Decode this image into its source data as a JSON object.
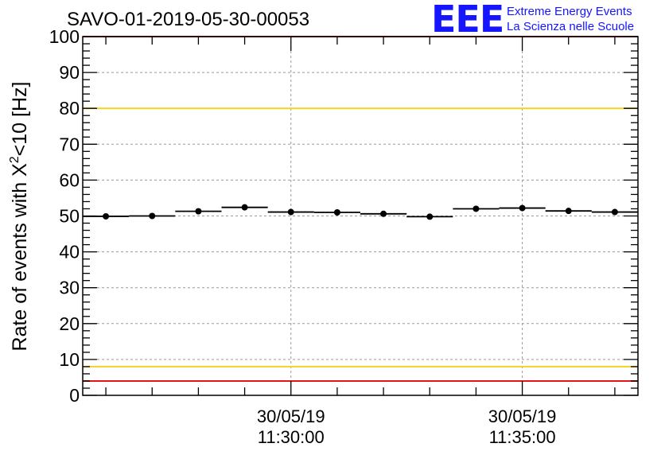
{
  "chart_data": {
    "type": "scatter",
    "title": "SAVO-01-2019-05-30-00053",
    "ylabel_parts": [
      "Rate of events with X",
      "2",
      "<10 [Hz]"
    ],
    "ylim": [
      0,
      100
    ],
    "yticks": [
      0,
      10,
      20,
      30,
      40,
      50,
      60,
      70,
      80,
      90,
      100
    ],
    "xlim_minutes": [
      0,
      12
    ],
    "x_major_ticks": [
      {
        "minute": 4.5,
        "date": "30/05/19",
        "time": "11:30:00"
      },
      {
        "minute": 9.5,
        "date": "30/05/19",
        "time": "11:35:00"
      }
    ],
    "x_minor_minutes": [
      0.5,
      1.5,
      2.5,
      3.5,
      4.5,
      5.5,
      6.5,
      7.5,
      8.5,
      9.5,
      10.5,
      11.5
    ],
    "bin_width_minutes": 1,
    "points": [
      {
        "x": 0.5,
        "y": 49.9
      },
      {
        "x": 1.5,
        "y": 50.0
      },
      {
        "x": 2.5,
        "y": 51.3
      },
      {
        "x": 3.5,
        "y": 52.4
      },
      {
        "x": 4.5,
        "y": 51.1
      },
      {
        "x": 5.5,
        "y": 51.0
      },
      {
        "x": 6.5,
        "y": 50.6
      },
      {
        "x": 7.5,
        "y": 49.8
      },
      {
        "x": 8.5,
        "y": 52.0
      },
      {
        "x": 9.5,
        "y": 52.2
      },
      {
        "x": 10.5,
        "y": 51.4
      },
      {
        "x": 11.5,
        "y": 51.1
      }
    ],
    "reference_lines": [
      {
        "y": 100,
        "color": "#e8141b",
        "name": "upper-red-limit-line"
      },
      {
        "y": 80,
        "color": "#f2d324",
        "name": "upper-yellow-limit-line"
      },
      {
        "y": 8,
        "color": "#f2d324",
        "name": "lower-yellow-limit-line"
      },
      {
        "y": 4,
        "color": "#e8141b",
        "name": "lower-red-limit-line"
      }
    ]
  },
  "logo": {
    "letters": "EEE",
    "line1": "Extreme Energy Events",
    "line2": "La Scienza nelle Scuole",
    "color": "#1515ff"
  }
}
